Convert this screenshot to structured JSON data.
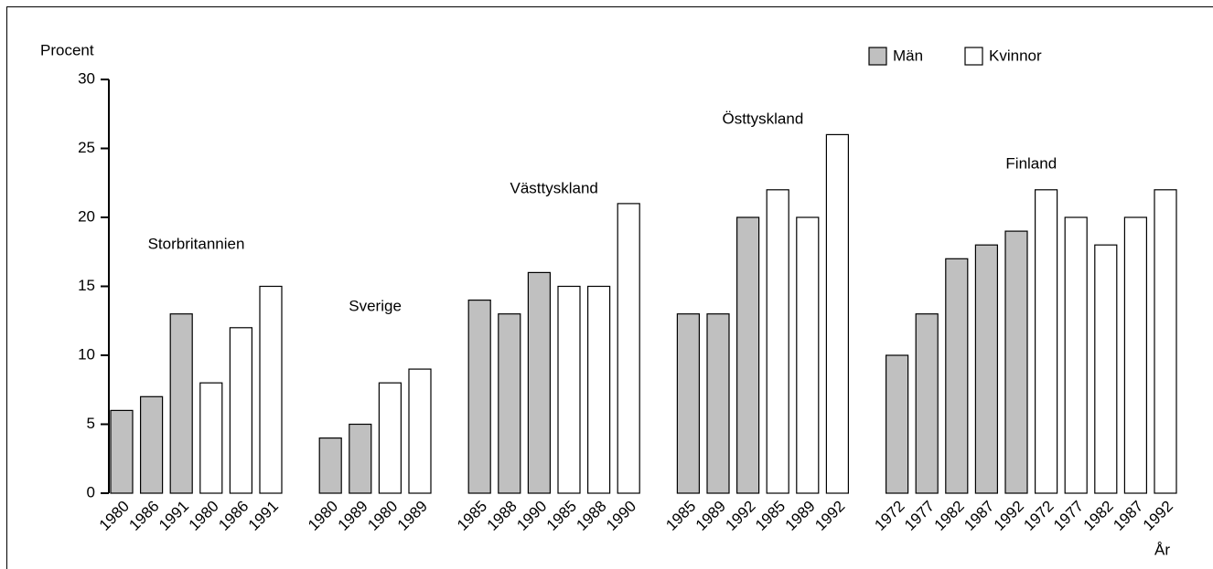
{
  "chart_data": {
    "type": "bar",
    "y_label": "Procent",
    "x_label": "År",
    "ylim": [
      0,
      30
    ],
    "yticks": [
      0,
      5,
      10,
      15,
      20,
      25,
      30
    ],
    "series": [
      {
        "name": "Män",
        "color": "#c0c0c0"
      },
      {
        "name": "Kvinnor",
        "color": "#ffffff"
      }
    ],
    "groups": [
      {
        "name": "Storbritannien",
        "series": [
          {
            "categories": [
              "1980",
              "1986",
              "1991"
            ],
            "values": [
              6,
              7,
              13
            ]
          },
          {
            "categories": [
              "1980",
              "1986",
              "1991"
            ],
            "values": [
              8,
              12,
              15
            ]
          }
        ]
      },
      {
        "name": "Sverige",
        "series": [
          {
            "categories": [
              "1980",
              "1989"
            ],
            "values": [
              4,
              5
            ]
          },
          {
            "categories": [
              "1980",
              "1989"
            ],
            "values": [
              8,
              9
            ]
          }
        ]
      },
      {
        "name": "Västtyskland",
        "series": [
          {
            "categories": [
              "1985",
              "1988",
              "1990"
            ],
            "values": [
              14,
              13,
              16
            ]
          },
          {
            "categories": [
              "1985",
              "1988",
              "1990"
            ],
            "values": [
              15,
              15,
              21
            ]
          }
        ]
      },
      {
        "name": "Östtyskland",
        "series": [
          {
            "categories": [
              "1985",
              "1989",
              "1992"
            ],
            "values": [
              13,
              13,
              20
            ]
          },
          {
            "categories": [
              "1985",
              "1989",
              "1992"
            ],
            "values": [
              22,
              20,
              26
            ]
          }
        ]
      },
      {
        "name": "Finland",
        "series": [
          {
            "categories": [
              "1972",
              "1977",
              "1982",
              "1987",
              "1992"
            ],
            "values": [
              10,
              13,
              17,
              18,
              19
            ]
          },
          {
            "categories": [
              "1972",
              "1977",
              "1982",
              "1987",
              "1992"
            ],
            "values": [
              22,
              20,
              18,
              20,
              22
            ]
          }
        ]
      }
    ]
  }
}
